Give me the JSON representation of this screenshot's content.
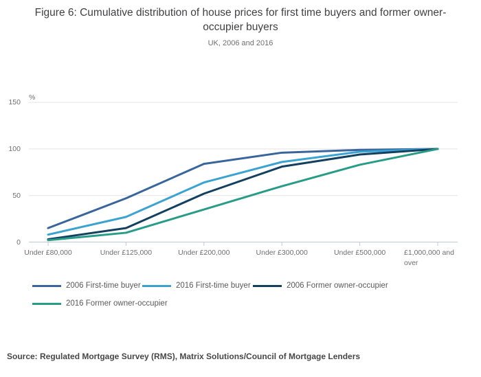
{
  "figure": {
    "source": "Source: Regulated Mortgage Survey (RMS), Matrix Solutions/Council of Mortgage Lenders"
  },
  "chart_data": {
    "type": "line",
    "title": "Figure 6: Cumulative distribution of house prices for first time buyers and former owner-occupier buyers",
    "subtitle": "UK, 2006 and 2016",
    "ylabel": "%",
    "xlabel": "",
    "ylim": [
      0,
      150
    ],
    "yticks": [
      0,
      50,
      100,
      150
    ],
    "grid": true,
    "legend_position": "bottom",
    "categories": [
      "Under £80,000",
      "Under £125,000",
      "Under £200,000",
      "Under £300,000",
      "Under £500,000",
      "£1,000,000 and over"
    ],
    "series": [
      {
        "name": "2006 First-time buyer",
        "color": "#38669c",
        "values": [
          15,
          47,
          84,
          96,
          99,
          100
        ]
      },
      {
        "name": "2016 First-time buyer",
        "color": "#3aa3d1",
        "values": [
          8,
          27,
          64,
          86,
          97,
          100
        ]
      },
      {
        "name": "2006 Former owner-occupier",
        "color": "#14405f",
        "values": [
          3,
          15,
          52,
          81,
          94,
          100
        ]
      },
      {
        "name": "2016 Former owner-occupier",
        "color": "#279c87",
        "values": [
          2,
          10,
          35,
          60,
          83,
          100
        ]
      }
    ],
    "colors": {
      "gridline": "#e3e3e3",
      "axis_line": "#bcc9d4"
    }
  }
}
